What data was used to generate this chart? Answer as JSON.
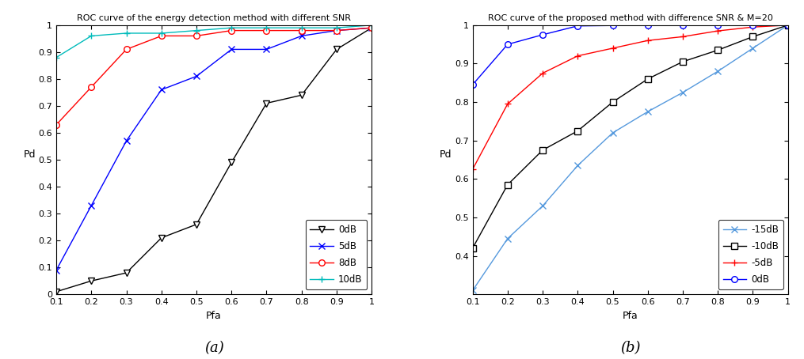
{
  "fig_width": 10.15,
  "fig_height": 4.54,
  "subplot_a": {
    "title": "ROC curve of the energy detection method with different SNR",
    "xlabel": "Pfa",
    "ylabel": "Pd",
    "xlim": [
      0.1,
      1.0
    ],
    "ylim": [
      0.0,
      1.0
    ],
    "xticks": [
      0.1,
      0.2,
      0.3,
      0.4,
      0.5,
      0.6,
      0.7,
      0.8,
      0.9,
      1.0
    ],
    "yticks": [
      0.0,
      0.1,
      0.2,
      0.3,
      0.4,
      0.5,
      0.6,
      0.7,
      0.8,
      0.9,
      1.0
    ],
    "caption": "(a)",
    "curves": [
      {
        "label": "0dB",
        "color": "black",
        "marker": "v",
        "markerfacecolor": "white",
        "markeredgecolor": "black",
        "pfa": [
          0.1,
          0.2,
          0.3,
          0.4,
          0.5,
          0.6,
          0.7,
          0.8,
          0.9,
          1.0
        ],
        "pd": [
          0.01,
          0.05,
          0.08,
          0.21,
          0.26,
          0.49,
          0.71,
          0.74,
          0.91,
          0.99
        ]
      },
      {
        "label": "5dB",
        "color": "blue",
        "marker": "x",
        "markerfacecolor": "blue",
        "markeredgecolor": "blue",
        "pfa": [
          0.1,
          0.2,
          0.3,
          0.4,
          0.5,
          0.6,
          0.7,
          0.8,
          0.9,
          1.0
        ],
        "pd": [
          0.09,
          0.33,
          0.57,
          0.76,
          0.81,
          0.91,
          0.91,
          0.96,
          0.98,
          0.99
        ]
      },
      {
        "label": "8dB",
        "color": "red",
        "marker": "o",
        "markerfacecolor": "white",
        "markeredgecolor": "red",
        "pfa": [
          0.1,
          0.2,
          0.3,
          0.4,
          0.5,
          0.6,
          0.7,
          0.8,
          0.9,
          1.0
        ],
        "pd": [
          0.63,
          0.77,
          0.91,
          0.96,
          0.96,
          0.98,
          0.98,
          0.98,
          0.98,
          0.99
        ]
      },
      {
        "label": "10dB",
        "color": "#00BBBB",
        "marker": "+",
        "markerfacecolor": "#00BBBB",
        "markeredgecolor": "#00BBBB",
        "pfa": [
          0.1,
          0.2,
          0.3,
          0.4,
          0.5,
          0.6,
          0.7,
          0.8,
          0.9,
          1.0
        ],
        "pd": [
          0.88,
          0.96,
          0.97,
          0.97,
          0.98,
          0.99,
          0.99,
          0.99,
          0.99,
          1.0
        ]
      }
    ]
  },
  "subplot_b": {
    "title": "ROC curve of the proposed method with difference SNR & M=20",
    "xlabel": "Pfa",
    "ylabel": "Pd",
    "xlim": [
      0.1,
      1.0
    ],
    "ylim": [
      0.3,
      1.0
    ],
    "xticks": [
      0.1,
      0.2,
      0.3,
      0.4,
      0.5,
      0.6,
      0.7,
      0.8,
      0.9,
      1.0
    ],
    "yticks": [
      0.4,
      0.5,
      0.6,
      0.7,
      0.8,
      0.9,
      1.0
    ],
    "caption": "(b)",
    "curves": [
      {
        "label": "-15dB",
        "color": "#5599DD",
        "marker": "x",
        "markerfacecolor": "#5599DD",
        "markeredgecolor": "#5599DD",
        "pfa": [
          0.1,
          0.2,
          0.3,
          0.4,
          0.5,
          0.6,
          0.7,
          0.8,
          0.9,
          1.0
        ],
        "pd": [
          0.31,
          0.445,
          0.53,
          0.635,
          0.72,
          0.775,
          0.825,
          0.88,
          0.94,
          1.0
        ]
      },
      {
        "label": "-10dB",
        "color": "black",
        "marker": "s",
        "markerfacecolor": "white",
        "markeredgecolor": "black",
        "pfa": [
          0.1,
          0.2,
          0.3,
          0.4,
          0.5,
          0.6,
          0.7,
          0.8,
          0.9,
          1.0
        ],
        "pd": [
          0.42,
          0.585,
          0.675,
          0.725,
          0.8,
          0.86,
          0.905,
          0.935,
          0.97,
          1.0
        ]
      },
      {
        "label": "-5dB",
        "color": "red",
        "marker": "+",
        "markerfacecolor": "red",
        "markeredgecolor": "red",
        "pfa": [
          0.1,
          0.2,
          0.3,
          0.4,
          0.5,
          0.6,
          0.7,
          0.8,
          0.9,
          1.0
        ],
        "pd": [
          0.625,
          0.795,
          0.875,
          0.92,
          0.94,
          0.96,
          0.97,
          0.985,
          0.995,
          1.0
        ]
      },
      {
        "label": "0dB",
        "color": "blue",
        "marker": "o",
        "markerfacecolor": "white",
        "markeredgecolor": "blue",
        "pfa": [
          0.1,
          0.2,
          0.3,
          0.4,
          0.5,
          0.6,
          0.7,
          0.8,
          0.9,
          1.0
        ],
        "pd": [
          0.845,
          0.95,
          0.975,
          0.998,
          0.999,
          0.999,
          0.999,
          1.0,
          1.0,
          1.0
        ]
      }
    ]
  }
}
